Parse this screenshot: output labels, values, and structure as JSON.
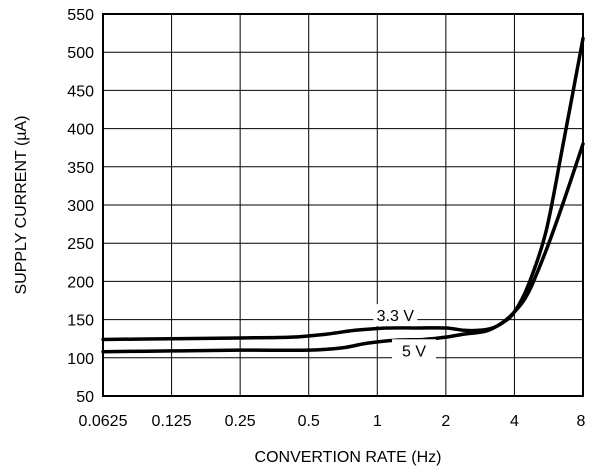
{
  "chart_data": {
    "type": "line",
    "xlabel": "CONVERTION RATE (Hz)",
    "ylabel": "SUPPLY CURRENT (µA)",
    "x_scale": "log2",
    "xlim": [
      0.0625,
      8
    ],
    "ylim": [
      50,
      550
    ],
    "grid": true,
    "x_ticks": [
      {
        "value": 0.0625,
        "label": "0.0625"
      },
      {
        "value": 0.125,
        "label": "0.125"
      },
      {
        "value": 0.25,
        "label": "0.25"
      },
      {
        "value": 0.5,
        "label": "0.5"
      },
      {
        "value": 1,
        "label": "1"
      },
      {
        "value": 2,
        "label": "2"
      },
      {
        "value": 4,
        "label": "4"
      },
      {
        "value": 8,
        "label": "8"
      }
    ],
    "y_ticks": [
      {
        "value": 50,
        "label": "50"
      },
      {
        "value": 100,
        "label": "100"
      },
      {
        "value": 150,
        "label": "150"
      },
      {
        "value": 200,
        "label": "200"
      },
      {
        "value": 250,
        "label": "250"
      },
      {
        "value": 300,
        "label": "300"
      },
      {
        "value": 350,
        "label": "350"
      },
      {
        "value": 400,
        "label": "400"
      },
      {
        "value": 450,
        "label": "450"
      },
      {
        "value": 500,
        "label": "500"
      },
      {
        "value": 550,
        "label": "550"
      }
    ],
    "series": [
      {
        "name": "3.3 V",
        "color": "#000000",
        "points": [
          [
            0.0625,
            124
          ],
          [
            0.125,
            125
          ],
          [
            0.25,
            126
          ],
          [
            0.42,
            127
          ],
          [
            0.6,
            131
          ],
          [
            0.8,
            136
          ],
          [
            1.1,
            139
          ],
          [
            1.5,
            139
          ],
          [
            2,
            139
          ],
          [
            2.4,
            136
          ],
          [
            2.8,
            136
          ],
          [
            3.2,
            139
          ],
          [
            3.6,
            147
          ],
          [
            4,
            160
          ],
          [
            4.6,
            195
          ],
          [
            5.5,
            265
          ],
          [
            6.5,
            375
          ],
          [
            8,
            518
          ]
        ]
      },
      {
        "name": "5 V",
        "color": "#000000",
        "points": [
          [
            0.0625,
            108
          ],
          [
            0.125,
            109
          ],
          [
            0.25,
            110
          ],
          [
            0.5,
            110
          ],
          [
            0.7,
            113
          ],
          [
            0.9,
            119
          ],
          [
            1.2,
            123
          ],
          [
            1.6,
            124
          ],
          [
            2,
            127
          ],
          [
            2.4,
            131
          ],
          [
            3,
            135
          ],
          [
            3.5,
            145
          ],
          [
            4,
            160
          ],
          [
            4.6,
            185
          ],
          [
            5.5,
            240
          ],
          [
            6.5,
            300
          ],
          [
            8,
            380
          ]
        ]
      }
    ],
    "annotations": [
      {
        "text": "3.3 V",
        "x": 1.2,
        "y": 148
      },
      {
        "text": "5 V",
        "x": 1.45,
        "y": 102
      }
    ]
  }
}
